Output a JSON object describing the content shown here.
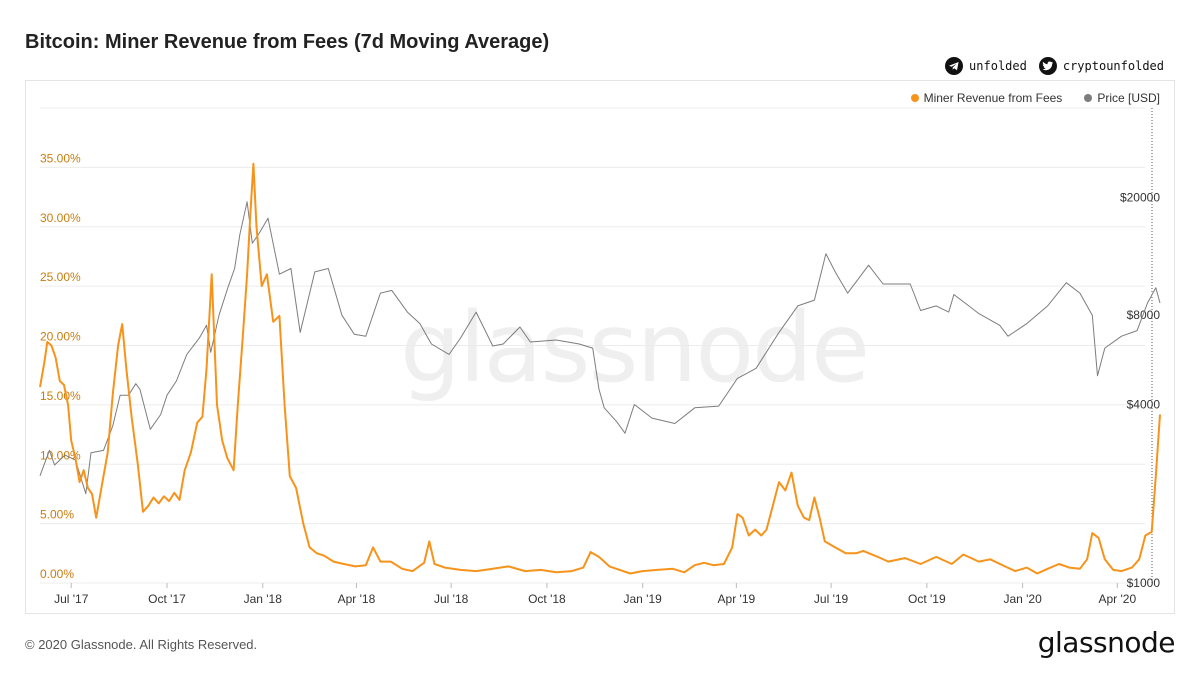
{
  "title": "Bitcoin: Miner Revenue from Fees (7d Moving Average)",
  "social": {
    "telegram_handle": "unfolded",
    "twitter_handle": "cryptounfolded",
    "telegram_icon": "telegram-icon",
    "twitter_icon": "twitter-icon"
  },
  "watermark": "glassnode",
  "footer": "© 2020 Glassnode. All Rights Reserved.",
  "brand": "glassnode",
  "colors": {
    "fees": "#f7931a",
    "price": "#7d7d7d",
    "left_axis_text": "#c97d0f",
    "grid": "#ececec"
  },
  "chart_data": {
    "type": "line",
    "title": "Bitcoin: Miner Revenue from Fees (7d Moving Average)",
    "legend": [
      "Miner Revenue from Fees",
      "Price [USD]"
    ],
    "legend_position": "top-right",
    "grid": true,
    "x_start": "2017-06-01",
    "x_end": "2020-05-12",
    "x_ticks": [
      {
        "label": "Jul '17",
        "date": "2017-07-01"
      },
      {
        "label": "Oct '17",
        "date": "2017-10-01"
      },
      {
        "label": "Jan '18",
        "date": "2018-01-01"
      },
      {
        "label": "Apr '18",
        "date": "2018-04-01"
      },
      {
        "label": "Jul '18",
        "date": "2018-07-01"
      },
      {
        "label": "Oct '18",
        "date": "2018-10-01"
      },
      {
        "label": "Jan '19",
        "date": "2019-01-01"
      },
      {
        "label": "Apr '19",
        "date": "2019-04-01"
      },
      {
        "label": "Jul '19",
        "date": "2019-07-01"
      },
      {
        "label": "Oct '19",
        "date": "2019-10-01"
      },
      {
        "label": "Jan '20",
        "date": "2020-01-01"
      },
      {
        "label": "Apr '20",
        "date": "2020-04-01"
      }
    ],
    "left_axis": {
      "ylim": [
        0,
        40
      ],
      "ticks": [
        0,
        5,
        10,
        15,
        20,
        25,
        30,
        35
      ],
      "tick_labels": [
        "0.00%",
        "5.00%",
        "10.00%",
        "15.00%",
        "20.00%",
        "25.00%",
        "30.00%",
        "35.00%"
      ]
    },
    "right_axis": {
      "scale": "log",
      "ylim": [
        1000,
        40000
      ],
      "ticks": [
        1000,
        4000,
        8000,
        20000
      ],
      "tick_labels": [
        "$1000",
        "$4000",
        "$8000",
        "$20000"
      ]
    },
    "series": [
      {
        "name": "Miner Revenue from Fees",
        "unit": "%",
        "axis": "left",
        "points": [
          [
            "2017-06-01",
            16.5
          ],
          [
            "2017-06-05",
            18.5
          ],
          [
            "2017-06-08",
            20.3
          ],
          [
            "2017-06-12",
            20.0
          ],
          [
            "2017-06-16",
            19.0
          ],
          [
            "2017-06-20",
            17.0
          ],
          [
            "2017-06-24",
            16.7
          ],
          [
            "2017-06-28",
            15.0
          ],
          [
            "2017-07-01",
            12.0
          ],
          [
            "2017-07-05",
            10.5
          ],
          [
            "2017-07-09",
            8.5
          ],
          [
            "2017-07-13",
            9.5
          ],
          [
            "2017-07-17",
            8.0
          ],
          [
            "2017-07-21",
            7.5
          ],
          [
            "2017-07-25",
            5.5
          ],
          [
            "2017-07-30",
            8.0
          ],
          [
            "2017-08-05",
            11.0
          ],
          [
            "2017-08-10",
            16.0
          ],
          [
            "2017-08-15",
            20.0
          ],
          [
            "2017-08-19",
            21.8
          ],
          [
            "2017-08-23",
            18.0
          ],
          [
            "2017-08-28",
            14.0
          ],
          [
            "2017-09-03",
            10.0
          ],
          [
            "2017-09-08",
            6.0
          ],
          [
            "2017-09-13",
            6.5
          ],
          [
            "2017-09-18",
            7.2
          ],
          [
            "2017-09-23",
            6.7
          ],
          [
            "2017-09-28",
            7.3
          ],
          [
            "2017-10-03",
            6.9
          ],
          [
            "2017-10-08",
            7.6
          ],
          [
            "2017-10-13",
            7.0
          ],
          [
            "2017-10-18",
            9.5
          ],
          [
            "2017-10-24",
            11.0
          ],
          [
            "2017-10-30",
            13.5
          ],
          [
            "2017-11-04",
            14.0
          ],
          [
            "2017-11-08",
            18.0
          ],
          [
            "2017-11-13",
            26.0
          ],
          [
            "2017-11-18",
            15.0
          ],
          [
            "2017-11-23",
            12.0
          ],
          [
            "2017-11-28",
            10.5
          ],
          [
            "2017-12-04",
            9.5
          ],
          [
            "2017-12-08",
            15.0
          ],
          [
            "2017-12-13",
            21.0
          ],
          [
            "2017-12-17",
            26.0
          ],
          [
            "2017-12-20",
            31.0
          ],
          [
            "2017-12-23",
            35.3
          ],
          [
            "2017-12-26",
            30.0
          ],
          [
            "2017-12-31",
            25.0
          ],
          [
            "2018-01-05",
            26.0
          ],
          [
            "2018-01-11",
            22.0
          ],
          [
            "2018-01-17",
            22.5
          ],
          [
            "2018-01-22",
            15.0
          ],
          [
            "2018-01-27",
            9.0
          ],
          [
            "2018-02-02",
            8.0
          ],
          [
            "2018-02-09",
            5.0
          ],
          [
            "2018-02-15",
            3.0
          ],
          [
            "2018-02-22",
            2.5
          ],
          [
            "2018-03-01",
            2.3
          ],
          [
            "2018-03-10",
            1.8
          ],
          [
            "2018-03-20",
            1.6
          ],
          [
            "2018-03-31",
            1.4
          ],
          [
            "2018-04-10",
            1.5
          ],
          [
            "2018-04-17",
            3.0
          ],
          [
            "2018-04-24",
            1.8
          ],
          [
            "2018-05-04",
            1.8
          ],
          [
            "2018-05-15",
            1.2
          ],
          [
            "2018-05-25",
            1.0
          ],
          [
            "2018-06-05",
            1.7
          ],
          [
            "2018-06-10",
            3.5
          ],
          [
            "2018-06-15",
            1.6
          ],
          [
            "2018-06-25",
            1.3
          ],
          [
            "2018-07-10",
            1.1
          ],
          [
            "2018-07-25",
            1.0
          ],
          [
            "2018-08-10",
            1.2
          ],
          [
            "2018-08-25",
            1.4
          ],
          [
            "2018-09-10",
            1.0
          ],
          [
            "2018-09-25",
            1.1
          ],
          [
            "2018-10-10",
            0.9
          ],
          [
            "2018-10-25",
            1.0
          ],
          [
            "2018-11-05",
            1.3
          ],
          [
            "2018-11-12",
            2.6
          ],
          [
            "2018-11-20",
            2.2
          ],
          [
            "2018-11-30",
            1.4
          ],
          [
            "2018-12-10",
            1.1
          ],
          [
            "2018-12-20",
            0.8
          ],
          [
            "2019-01-01",
            1.0
          ],
          [
            "2019-01-15",
            1.1
          ],
          [
            "2019-01-30",
            1.2
          ],
          [
            "2019-02-10",
            0.9
          ],
          [
            "2019-02-20",
            1.5
          ],
          [
            "2019-03-01",
            1.7
          ],
          [
            "2019-03-10",
            1.5
          ],
          [
            "2019-03-20",
            1.6
          ],
          [
            "2019-03-28",
            3.0
          ],
          [
            "2019-04-02",
            5.8
          ],
          [
            "2019-04-07",
            5.5
          ],
          [
            "2019-04-13",
            4.0
          ],
          [
            "2019-04-19",
            4.5
          ],
          [
            "2019-04-25",
            4.0
          ],
          [
            "2019-04-30",
            4.5
          ],
          [
            "2019-05-06",
            6.5
          ],
          [
            "2019-05-12",
            8.5
          ],
          [
            "2019-05-18",
            7.8
          ],
          [
            "2019-05-24",
            9.3
          ],
          [
            "2019-05-30",
            6.5
          ],
          [
            "2019-06-05",
            5.5
          ],
          [
            "2019-06-10",
            5.3
          ],
          [
            "2019-06-15",
            7.2
          ],
          [
            "2019-06-20",
            5.5
          ],
          [
            "2019-06-25",
            3.5
          ],
          [
            "2019-07-05",
            3.0
          ],
          [
            "2019-07-15",
            2.5
          ],
          [
            "2019-07-25",
            2.5
          ],
          [
            "2019-08-01",
            2.7
          ],
          [
            "2019-08-15",
            2.2
          ],
          [
            "2019-08-25",
            1.8
          ],
          [
            "2019-09-10",
            2.1
          ],
          [
            "2019-09-25",
            1.6
          ],
          [
            "2019-10-10",
            2.2
          ],
          [
            "2019-10-25",
            1.6
          ],
          [
            "2019-11-05",
            2.4
          ],
          [
            "2019-11-20",
            1.8
          ],
          [
            "2019-12-01",
            2.0
          ],
          [
            "2019-12-15",
            1.4
          ],
          [
            "2019-12-25",
            1.0
          ],
          [
            "2020-01-05",
            1.3
          ],
          [
            "2020-01-15",
            0.8
          ],
          [
            "2020-01-25",
            1.2
          ],
          [
            "2020-02-05",
            1.6
          ],
          [
            "2020-02-15",
            1.3
          ],
          [
            "2020-02-25",
            1.2
          ],
          [
            "2020-03-03",
            2.0
          ],
          [
            "2020-03-08",
            4.2
          ],
          [
            "2020-03-14",
            3.8
          ],
          [
            "2020-03-20",
            2.0
          ],
          [
            "2020-03-28",
            1.1
          ],
          [
            "2020-04-05",
            1.0
          ],
          [
            "2020-04-15",
            1.3
          ],
          [
            "2020-04-22",
            2.0
          ],
          [
            "2020-04-28",
            4.0
          ],
          [
            "2020-05-04",
            4.3
          ],
          [
            "2020-05-08",
            9.0
          ],
          [
            "2020-05-12",
            14.2
          ]
        ]
      },
      {
        "name": "Price [USD]",
        "unit": "USD",
        "axis": "right",
        "points": [
          [
            "2017-06-01",
            2300
          ],
          [
            "2017-06-10",
            2800
          ],
          [
            "2017-06-15",
            2500
          ],
          [
            "2017-06-25",
            2700
          ],
          [
            "2017-07-05",
            2600
          ],
          [
            "2017-07-15",
            2000
          ],
          [
            "2017-07-20",
            2750
          ],
          [
            "2017-08-01",
            2800
          ],
          [
            "2017-08-10",
            3400
          ],
          [
            "2017-08-17",
            4300
          ],
          [
            "2017-08-25",
            4300
          ],
          [
            "2017-09-01",
            4700
          ],
          [
            "2017-09-05",
            4500
          ],
          [
            "2017-09-15",
            3300
          ],
          [
            "2017-09-25",
            3700
          ],
          [
            "2017-10-01",
            4300
          ],
          [
            "2017-10-10",
            4800
          ],
          [
            "2017-10-20",
            5900
          ],
          [
            "2017-11-01",
            6700
          ],
          [
            "2017-11-08",
            7400
          ],
          [
            "2017-11-12",
            6000
          ],
          [
            "2017-11-20",
            8000
          ],
          [
            "2017-11-28",
            9800
          ],
          [
            "2017-12-05",
            11500
          ],
          [
            "2017-12-10",
            15000
          ],
          [
            "2017-12-17",
            19300
          ],
          [
            "2017-12-22",
            14000
          ],
          [
            "2017-12-28",
            15000
          ],
          [
            "2018-01-06",
            17000
          ],
          [
            "2018-01-17",
            11000
          ],
          [
            "2018-01-28",
            11500
          ],
          [
            "2018-02-06",
            7000
          ],
          [
            "2018-02-20",
            11200
          ],
          [
            "2018-03-05",
            11500
          ],
          [
            "2018-03-18",
            8000
          ],
          [
            "2018-03-30",
            6900
          ],
          [
            "2018-04-10",
            6800
          ],
          [
            "2018-04-24",
            9500
          ],
          [
            "2018-05-05",
            9700
          ],
          [
            "2018-05-20",
            8200
          ],
          [
            "2018-06-01",
            7500
          ],
          [
            "2018-06-12",
            6400
          ],
          [
            "2018-06-29",
            5900
          ],
          [
            "2018-07-10",
            6700
          ],
          [
            "2018-07-25",
            8200
          ],
          [
            "2018-08-10",
            6300
          ],
          [
            "2018-08-20",
            6400
          ],
          [
            "2018-09-05",
            7300
          ],
          [
            "2018-09-15",
            6500
          ],
          [
            "2018-10-10",
            6600
          ],
          [
            "2018-11-01",
            6400
          ],
          [
            "2018-11-14",
            6200
          ],
          [
            "2018-11-20",
            4500
          ],
          [
            "2018-11-25",
            3900
          ],
          [
            "2018-12-07",
            3500
          ],
          [
            "2018-12-15",
            3200
          ],
          [
            "2018-12-24",
            4000
          ],
          [
            "2019-01-10",
            3600
          ],
          [
            "2019-02-01",
            3450
          ],
          [
            "2019-02-20",
            3900
          ],
          [
            "2019-03-15",
            3950
          ],
          [
            "2019-04-02",
            4900
          ],
          [
            "2019-04-20",
            5300
          ],
          [
            "2019-05-12",
            7000
          ],
          [
            "2019-05-30",
            8600
          ],
          [
            "2019-06-15",
            9000
          ],
          [
            "2019-06-26",
            12900
          ],
          [
            "2019-07-05",
            11200
          ],
          [
            "2019-07-17",
            9500
          ],
          [
            "2019-08-06",
            11800
          ],
          [
            "2019-08-20",
            10200
          ],
          [
            "2019-09-15",
            10200
          ],
          [
            "2019-09-25",
            8300
          ],
          [
            "2019-10-10",
            8600
          ],
          [
            "2019-10-22",
            8200
          ],
          [
            "2019-10-27",
            9400
          ],
          [
            "2019-11-20",
            8100
          ],
          [
            "2019-12-10",
            7400
          ],
          [
            "2019-12-18",
            6800
          ],
          [
            "2020-01-05",
            7500
          ],
          [
            "2020-01-25",
            8600
          ],
          [
            "2020-02-12",
            10300
          ],
          [
            "2020-02-25",
            9500
          ],
          [
            "2020-03-08",
            8000
          ],
          [
            "2020-03-13",
            5000
          ],
          [
            "2020-03-20",
            6200
          ],
          [
            "2020-04-05",
            6800
          ],
          [
            "2020-04-20",
            7100
          ],
          [
            "2020-04-30",
            8800
          ],
          [
            "2020-05-08",
            9900
          ],
          [
            "2020-05-12",
            8800
          ]
        ]
      }
    ]
  }
}
